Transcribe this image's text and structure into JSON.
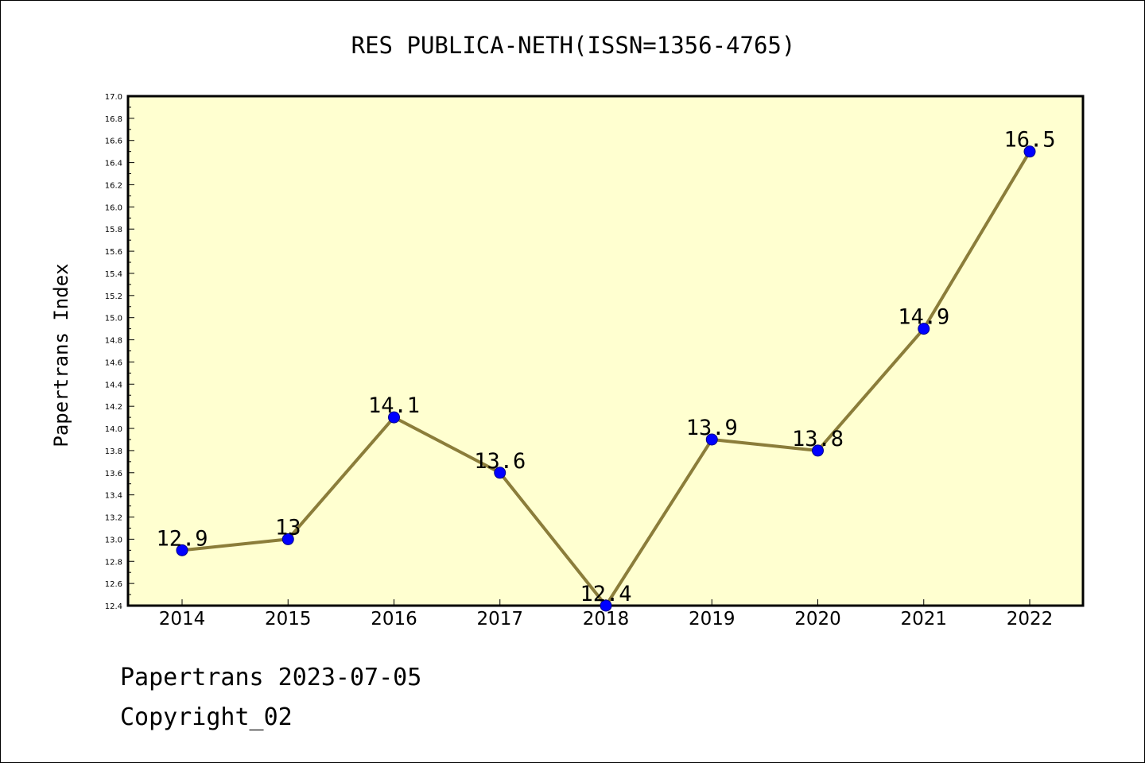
{
  "chart_data": {
    "type": "line",
    "title": "RES PUBLICA-NETH(ISSN=1356-4765)",
    "xlabel": "",
    "ylabel": "Papertrans Index",
    "categories": [
      "2014",
      "2015",
      "2016",
      "2017",
      "2018",
      "2019",
      "2020",
      "2021",
      "2022"
    ],
    "series": [
      {
        "values": [
          12.9,
          13,
          14.1,
          13.6,
          12.4,
          13.9,
          13.8,
          14.9,
          16.5
        ],
        "data_labels": [
          "12.9",
          "13",
          "14.1",
          "13.6",
          "12.4",
          "13.9",
          "13.8",
          "14.9",
          "16.5"
        ]
      }
    ],
    "ylim": [
      12.4,
      17.0
    ],
    "yticks": [
      "12.4",
      "12.6",
      "12.8",
      "13.0",
      "13.2",
      "13.4",
      "13.6",
      "13.8",
      "14.0",
      "14.2",
      "14.4",
      "14.6",
      "14.8",
      "15.0",
      "15.2",
      "15.4",
      "15.6",
      "15.8",
      "16.0",
      "16.2",
      "16.4",
      "16.6",
      "16.8",
      "17.0"
    ],
    "grid": false,
    "legend": "none",
    "colors": {
      "plot_background": "#ffffd0",
      "line": "#8b7d3a",
      "marker": "#0000ff",
      "marker_edge": "#00008b"
    }
  },
  "footer": {
    "date_line": "Papertrans 2023-07-05",
    "copyright_line": "Copyright_02"
  }
}
